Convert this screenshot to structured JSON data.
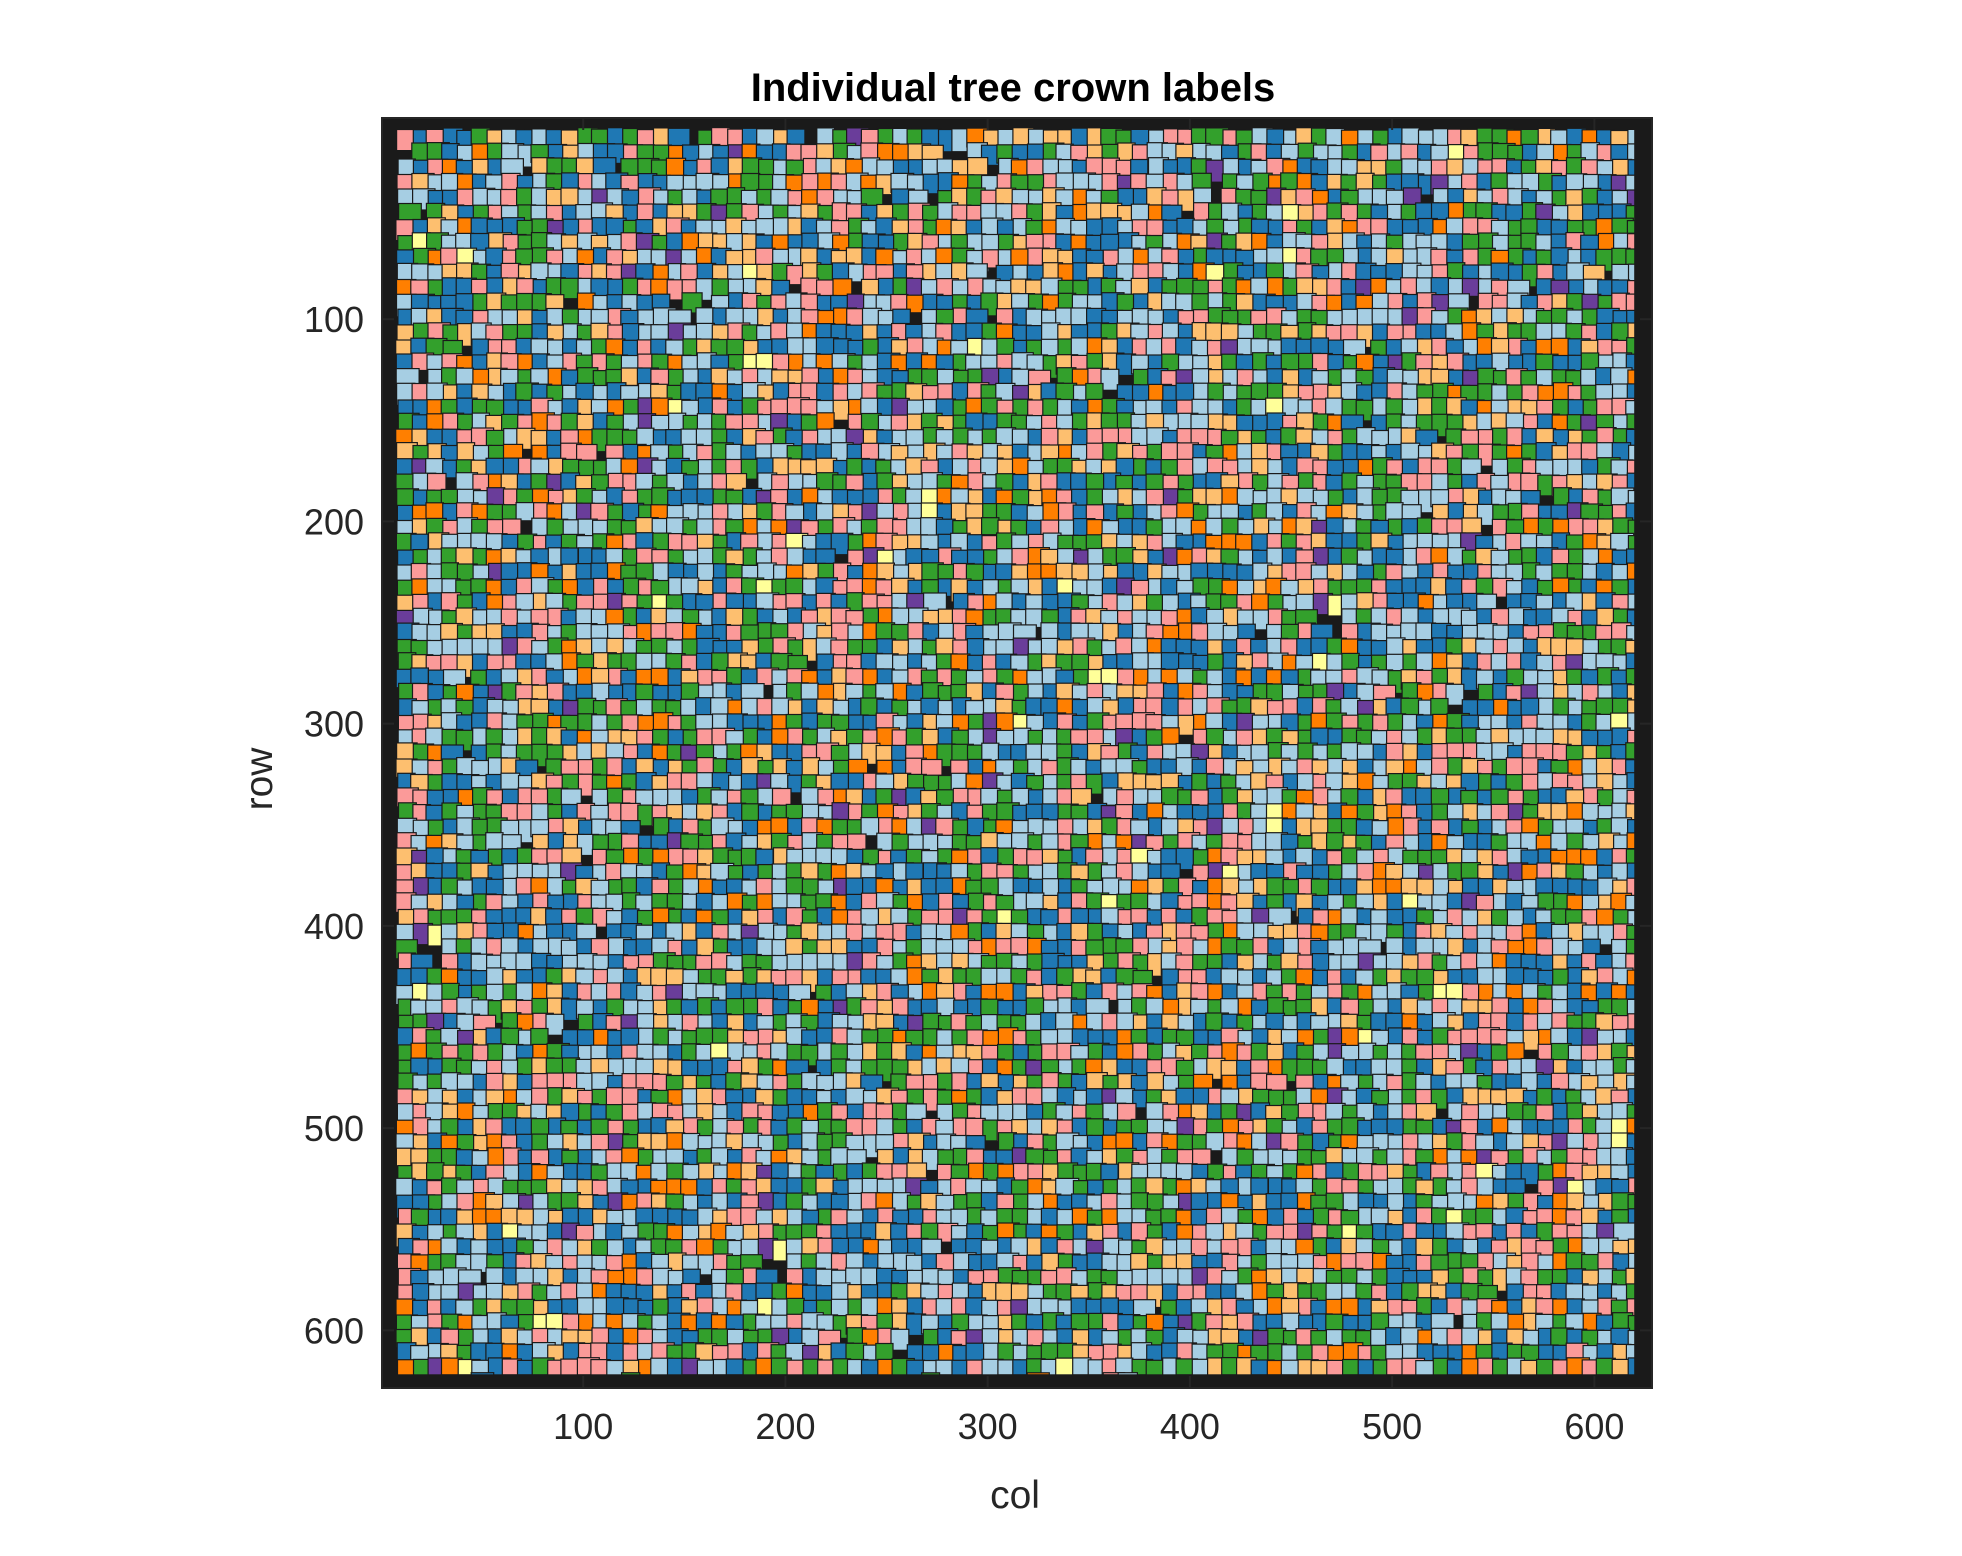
{
  "chart_data": {
    "type": "heatmap",
    "title": "Individual tree crown labels",
    "xlabel": "col",
    "ylabel": "row",
    "xlim": [
      0.5,
      628.5
    ],
    "ylim": [
      0.5,
      628.5
    ],
    "y_direction": "reverse",
    "x_ticks": [
      100,
      200,
      300,
      400,
      500,
      600
    ],
    "y_ticks": [
      100,
      200,
      300,
      400,
      500,
      600
    ],
    "x_tick_labels": [
      "100",
      "200",
      "300",
      "400",
      "500",
      "600"
    ],
    "y_tick_labels": [
      "100",
      "200",
      "300",
      "400",
      "500",
      "600"
    ],
    "grid": false,
    "legend": "none",
    "background_color": "#1a1a1a",
    "crown_fill_extent": {
      "col": [
        8,
        620
      ],
      "row": [
        6,
        622
      ]
    },
    "label_colors": [
      "#a6cee3",
      "#1f78b4",
      "#33a02c",
      "#fb9a99",
      "#fdbf6f",
      "#ff7f00",
      "#6a3d9a",
      "#ffff99"
    ],
    "label_color_weights": [
      24,
      20,
      20,
      16,
      11,
      6,
      2,
      1
    ]
  }
}
